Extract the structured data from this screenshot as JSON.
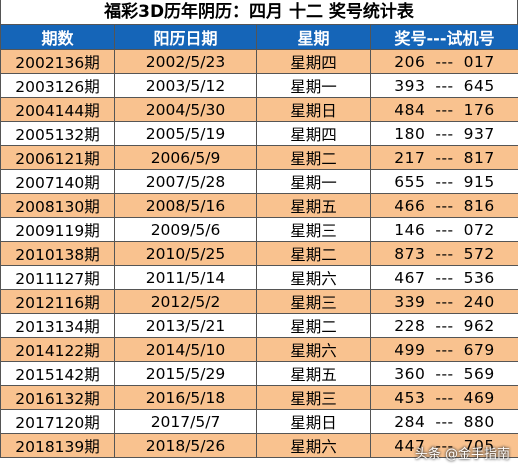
{
  "title": "福彩3D历年阴历：四月 十二 奖号统计表",
  "headers": {
    "period": "期数",
    "date": "阳历日期",
    "weekday": "星期",
    "numbers": "奖号---试机号"
  },
  "separator": "---",
  "rows": [
    {
      "period": "2002136期",
      "date": "2002/5/23",
      "weekday": "星期四",
      "prize": "206",
      "test": "017"
    },
    {
      "period": "2003126期",
      "date": "2003/5/12",
      "weekday": "星期一",
      "prize": "393",
      "test": "645"
    },
    {
      "period": "2004144期",
      "date": "2004/5/30",
      "weekday": "星期日",
      "prize": "484",
      "test": "176"
    },
    {
      "period": "2005132期",
      "date": "2005/5/19",
      "weekday": "星期四",
      "prize": "180",
      "test": "937"
    },
    {
      "period": "2006121期",
      "date": "2006/5/9",
      "weekday": "星期二",
      "prize": "217",
      "test": "817"
    },
    {
      "period": "2007140期",
      "date": "2007/5/28",
      "weekday": "星期一",
      "prize": "655",
      "test": "915"
    },
    {
      "period": "2008130期",
      "date": "2008/5/16",
      "weekday": "星期五",
      "prize": "466",
      "test": "816"
    },
    {
      "period": "2009119期",
      "date": "2009/5/6",
      "weekday": "星期三",
      "prize": "146",
      "test": "072"
    },
    {
      "period": "2010138期",
      "date": "2010/5/25",
      "weekday": "星期二",
      "prize": "873",
      "test": "572"
    },
    {
      "period": "2011127期",
      "date": "2011/5/14",
      "weekday": "星期六",
      "prize": "467",
      "test": "536"
    },
    {
      "period": "2012116期",
      "date": "2012/5/2",
      "weekday": "星期三",
      "prize": "339",
      "test": "240"
    },
    {
      "period": "2013134期",
      "date": "2013/5/21",
      "weekday": "星期二",
      "prize": "228",
      "test": "962"
    },
    {
      "period": "2014122期",
      "date": "2014/5/10",
      "weekday": "星期六",
      "prize": "499",
      "test": "679"
    },
    {
      "period": "2015142期",
      "date": "2015/5/29",
      "weekday": "星期五",
      "prize": "360",
      "test": "569"
    },
    {
      "period": "2016132期",
      "date": "2016/5/18",
      "weekday": "星期三",
      "prize": "453",
      "test": "469"
    },
    {
      "period": "2017120期",
      "date": "2017/5/7",
      "weekday": "星期日",
      "prize": "284",
      "test": "880"
    },
    {
      "period": "2018139期",
      "date": "2018/5/26",
      "weekday": "星期六",
      "prize": "447",
      "test": "705"
    }
  ],
  "watermark": "头条 @金手指南",
  "colors": {
    "header_bg": "#1565b8",
    "odd_row_bg": "#f9c28f",
    "even_row_bg": "#ffffff"
  }
}
